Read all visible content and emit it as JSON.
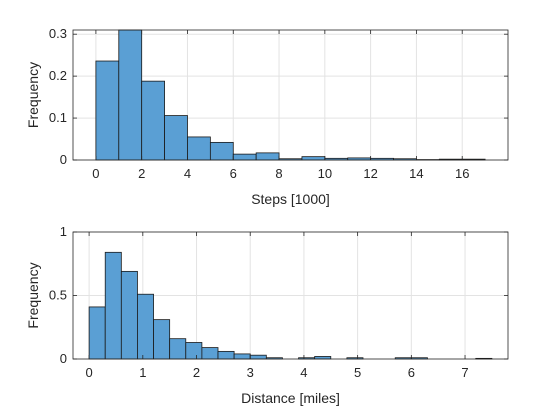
{
  "figure": {
    "background": "#ffffff",
    "bar_color": "#5a9fd4",
    "bar_edge": "#1a1a1a",
    "grid_color": "#e3e3e3",
    "axis_color": "#262626"
  },
  "chart_data": [
    {
      "type": "bar",
      "subtype": "histogram",
      "title": "",
      "xlabel": "Steps [1000]",
      "ylabel": "Frequency",
      "xlim": [
        -1,
        18
      ],
      "ylim": [
        0,
        0.31
      ],
      "xticks": [
        0,
        2,
        4,
        6,
        8,
        10,
        12,
        14,
        16
      ],
      "yticks": [
        0,
        0.1,
        0.2,
        0.3
      ],
      "ytick_labels": [
        "0",
        "0.1",
        "0.2",
        "0.3"
      ],
      "grid": true,
      "bin_edges": [
        0,
        1,
        2,
        3,
        4,
        5,
        6,
        7,
        8,
        9,
        10,
        11,
        12,
        13,
        14,
        15,
        16,
        17
      ],
      "values": [
        0.236,
        0.315,
        0.188,
        0.106,
        0.055,
        0.042,
        0.014,
        0.017,
        0.003,
        0.008,
        0.004,
        0.005,
        0.004,
        0.003,
        0.001,
        0.002,
        0.002
      ]
    },
    {
      "type": "bar",
      "subtype": "histogram",
      "title": "",
      "xlabel": "Distance [miles]",
      "ylabel": "Frequency",
      "xlim": [
        -0.3,
        7.8
      ],
      "ylim": [
        0,
        1
      ],
      "xticks": [
        0,
        1,
        2,
        3,
        4,
        5,
        6,
        7
      ],
      "yticks": [
        0,
        0.5,
        1
      ],
      "ytick_labels": [
        "0",
        "0.5",
        "1"
      ],
      "grid": true,
      "bin_edges": [
        0,
        0.3,
        0.6,
        0.9,
        1.2,
        1.5,
        1.8,
        2.1,
        2.4,
        2.7,
        3.0,
        3.3,
        3.6,
        3.9,
        4.2,
        4.5,
        4.8,
        5.1,
        5.4,
        5.7,
        6.0,
        6.3,
        6.6,
        6.9,
        7.2,
        7.5
      ],
      "values": [
        0.41,
        0.84,
        0.69,
        0.51,
        0.31,
        0.16,
        0.13,
        0.09,
        0.06,
        0.04,
        0.03,
        0.01,
        0.0,
        0.01,
        0.02,
        0.0,
        0.01,
        0.0,
        0.0,
        0.01,
        0.01,
        0.0,
        0.0,
        0.0,
        0.005
      ]
    }
  ]
}
